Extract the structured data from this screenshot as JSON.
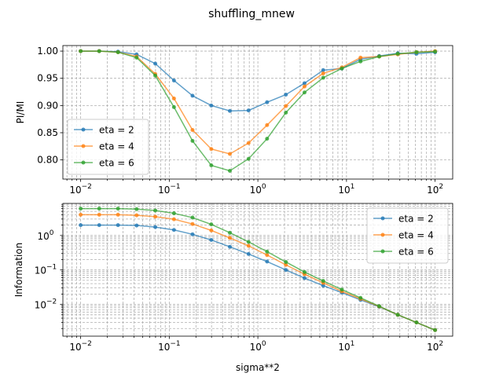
{
  "figure": {
    "suptitle": "shuffling_mnew"
  },
  "chart_data": [
    {
      "type": "line",
      "ylabel": "PI/MI",
      "xlabel": "",
      "xscale": "log",
      "yscale": "linear",
      "xlim": [
        0.0063,
        158
      ],
      "ylim": [
        0.7648,
        1.0102
      ],
      "x_ticks": [
        0.01,
        0.1,
        1,
        10,
        100
      ],
      "x_tick_labels": [
        {
          "base": "10",
          "exp": "−2"
        },
        {
          "base": "10",
          "exp": "−1"
        },
        {
          "base": "10",
          "exp": "0"
        },
        {
          "base": "10",
          "exp": "1"
        },
        {
          "base": "10",
          "exp": "2"
        }
      ],
      "y_ticks": [
        0.8,
        0.85,
        0.9,
        0.95,
        1.0
      ],
      "y_tick_labels": [
        "0.80",
        "0.85",
        "0.90",
        "0.95",
        "1.00"
      ],
      "grid": "major and minor, dashed",
      "legend_position": "lower-left",
      "x": [
        0.01,
        0.0162,
        0.0264,
        0.0428,
        0.0695,
        0.113,
        0.183,
        0.298,
        0.483,
        0.785,
        1.27,
        2.07,
        3.36,
        5.46,
        8.86,
        14.4,
        23.4,
        37.9,
        61.6,
        100
      ],
      "series": [
        {
          "name": "eta = 2",
          "color": "#1f77b4",
          "values": [
            1.0,
            1.0,
            0.999,
            0.994,
            0.977,
            0.946,
            0.918,
            0.9,
            0.89,
            0.891,
            0.906,
            0.92,
            0.941,
            0.965,
            0.968,
            0.985,
            0.991,
            0.996,
            0.995,
            0.998
          ]
        },
        {
          "name": "eta = 4",
          "color": "#ff7f0e",
          "values": [
            1.0,
            1.0,
            0.998,
            0.99,
            0.958,
            0.913,
            0.855,
            0.82,
            0.811,
            0.831,
            0.864,
            0.899,
            0.935,
            0.959,
            0.97,
            0.988,
            0.99,
            0.994,
            0.998,
            1.0
          ]
        },
        {
          "name": "eta = 6",
          "color": "#2ca02c",
          "values": [
            1.0,
            1.0,
            0.998,
            0.988,
            0.955,
            0.897,
            0.835,
            0.79,
            0.78,
            0.802,
            0.839,
            0.887,
            0.924,
            0.951,
            0.968,
            0.981,
            0.99,
            0.995,
            0.998,
            0.999
          ]
        }
      ]
    },
    {
      "type": "line",
      "ylabel": "Information",
      "xlabel": "sigma**2",
      "xscale": "log",
      "yscale": "log",
      "xlim": [
        0.0063,
        158
      ],
      "ylim": [
        0.0012,
        8.5
      ],
      "x_ticks": [
        0.01,
        0.1,
        1,
        10,
        100
      ],
      "x_tick_labels": [
        {
          "base": "10",
          "exp": "−2"
        },
        {
          "base": "10",
          "exp": "−1"
        },
        {
          "base": "10",
          "exp": "0"
        },
        {
          "base": "10",
          "exp": "1"
        },
        {
          "base": "10",
          "exp": "2"
        }
      ],
      "y_ticks": [
        0.01,
        0.1,
        1
      ],
      "y_tick_labels": [
        {
          "base": "10",
          "exp": "−2"
        },
        {
          "base": "10",
          "exp": "−1"
        },
        {
          "base": "10",
          "exp": "0"
        }
      ],
      "grid": "major and minor, dashed",
      "legend_position": "upper-right",
      "x": [
        0.01,
        0.0162,
        0.0264,
        0.0428,
        0.0695,
        0.113,
        0.183,
        0.298,
        0.483,
        0.785,
        1.27,
        2.07,
        3.36,
        5.46,
        8.86,
        14.4,
        23.4,
        37.9,
        61.6,
        100
      ],
      "series": [
        {
          "name": "eta = 2",
          "color": "#1f77b4",
          "values": [
            2.0,
            2.0,
            2.0,
            1.95,
            1.75,
            1.45,
            1.08,
            0.74,
            0.47,
            0.29,
            0.175,
            0.1,
            0.058,
            0.035,
            0.022,
            0.0135,
            0.0085,
            0.005,
            0.003,
            0.0018
          ]
        },
        {
          "name": "eta = 4",
          "color": "#ff7f0e",
          "values": [
            4.0,
            4.0,
            4.0,
            3.85,
            3.5,
            2.95,
            2.15,
            1.4,
            0.85,
            0.5,
            0.27,
            0.14,
            0.075,
            0.042,
            0.024,
            0.0145,
            0.0087,
            0.005,
            0.003,
            0.0018
          ]
        },
        {
          "name": "eta = 6",
          "color": "#2ca02c",
          "values": [
            6.0,
            6.0,
            6.0,
            5.8,
            5.3,
            4.4,
            3.3,
            2.1,
            1.2,
            0.65,
            0.34,
            0.17,
            0.087,
            0.048,
            0.027,
            0.0155,
            0.0089,
            0.005,
            0.003,
            0.0018
          ]
        }
      ]
    }
  ]
}
